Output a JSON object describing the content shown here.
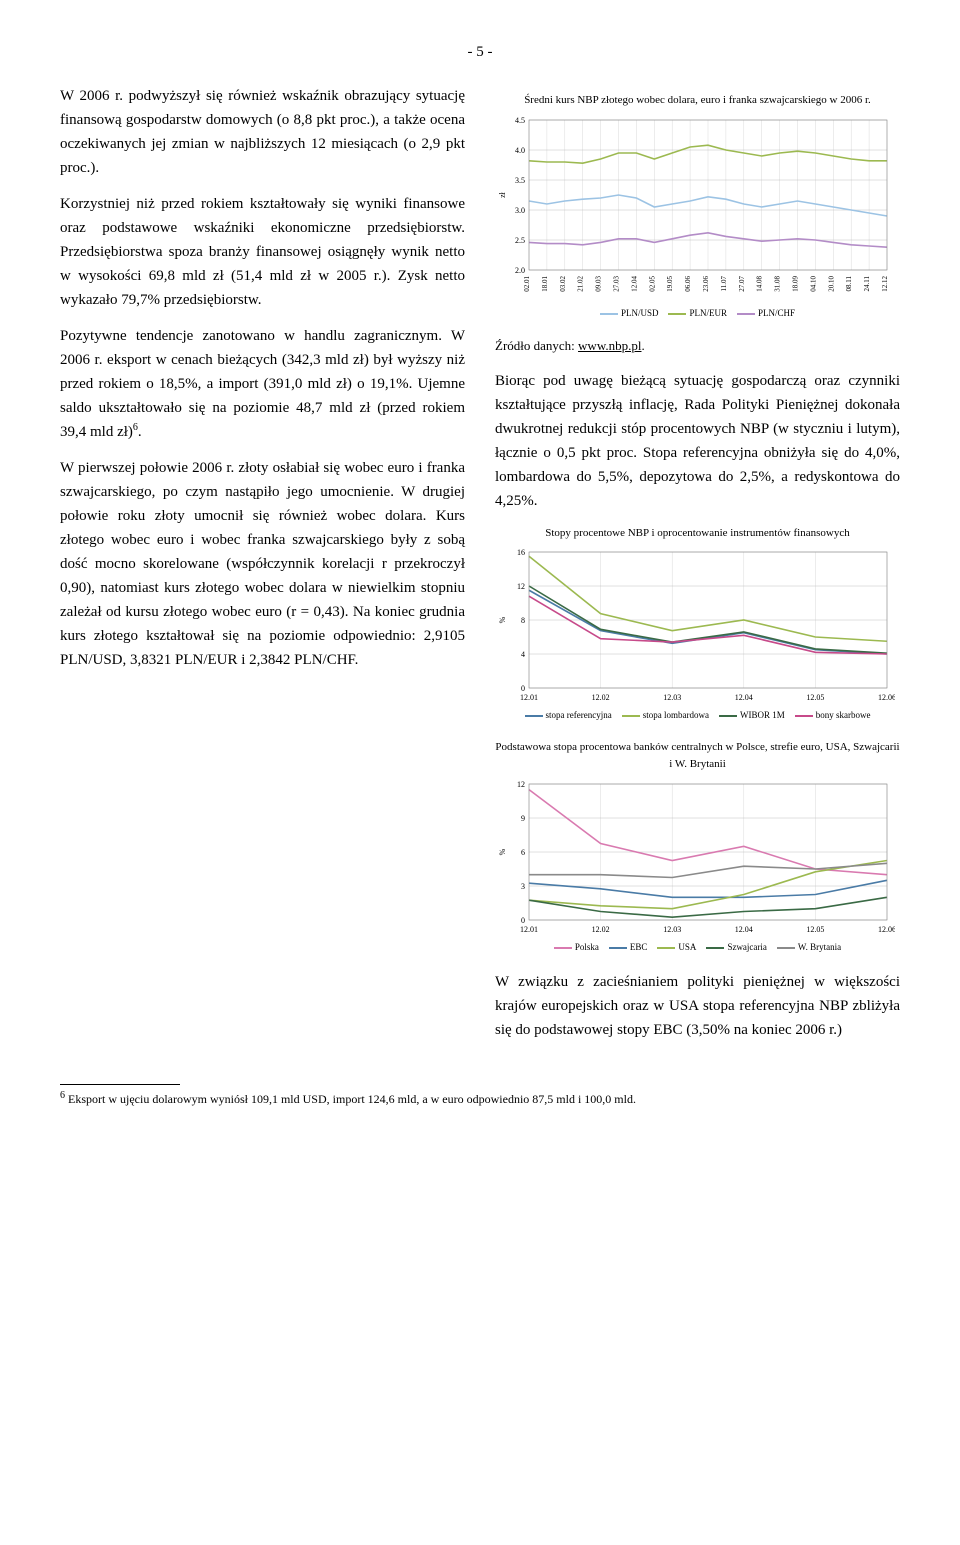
{
  "page_number": "- 5 -",
  "left": {
    "p1": "W 2006 r. podwyższył się również wskaźnik obrazujący sytuację finansową gospodarstw domowych (o 8,8 pkt proc.), a także ocena oczekiwanych jej zmian w najbliższych 12 miesiącach (o 2,9 pkt proc.).",
    "p2": "Korzystniej niż przed rokiem kształtowały się wyniki finansowe oraz podstawowe wskaźniki ekonomiczne przedsiębiorstw. Przedsiębiorstwa spoza branży finansowej osiągnęły wynik netto w wysokości 69,8 mld zł (51,4 mld zł w 2005 r.). Zysk netto wykazało 79,7% przedsiębiorstw.",
    "p3": "Pozytywne tendencje zanotowano w handlu zagranicznym. W 2006 r. eksport w cenach bieżących (342,3 mld zł) był wyższy niż przed rokiem o 18,5%, a import (391,0 mld zł) o 19,1%. Ujemne saldo ukształtowało się na poziomie 48,7 mld zł (przed rokiem 39,4 mld zł)",
    "p3_sup": "6",
    "p3_tail": ".",
    "p4": "W pierwszej połowie 2006 r. złoty osłabiał się wobec euro i franka szwajcarskiego, po czym nastąpiło jego umocnienie. W drugiej połowie roku złoty umocnił się również wobec dolara. Kurs złotego wobec euro i wobec franka szwajcarskiego były z sobą dość mocno skorelowane (współczynnik korelacji r przekroczył 0,90), natomiast kurs złotego wobec dolara w niewielkim stopniu zależał od kursu złotego wobec euro (r = 0,43). Na koniec grudnia kurs złotego kształtował się na poziomie odpowiednio: 2,9105 PLN/USD, 3,8321 PLN/EUR i 2,3842 PLN/CHF."
  },
  "right": {
    "p1": "Biorąc pod uwagę bieżącą sytuację gospodarczą oraz czynniki kształtujące przyszłą inflację, Rada Polityki Pieniężnej dokonała dwukrotnej redukcji stóp procentowych NBP (w styczniu i lutym), łącznie o 0,5 pkt proc. Stopa referencyjna obniżyła się do 4,0%, lombardowa do 5,5%, depozytowa do 2,5%, a redyskontowa do 4,25%.",
    "p2": "W związku z zacieśnianiem polityki pieniężnej w większości krajów europejskich oraz w USA stopa referencyjna NBP zbliżyła się do podstawowej stopy EBC (3,50% na koniec 2006 r.)",
    "source_label": "Źródło danych: ",
    "source_link": "www.nbp.pl",
    "source_tail": "."
  },
  "footnote": {
    "num": "6",
    "text": " Eksport w ujęciu dolarowym wyniósł 109,1 mld USD, import 124,6 mld, a w euro odpowiednio 87,5 mld i 100,0 mld."
  },
  "chart1": {
    "title": "Średni kurs NBP złotego wobec dolara, euro i franka szwajcarskiego w 2006 r.",
    "ylabel": "zł",
    "ylim": [
      2.0,
      4.5
    ],
    "ytick_step": 0.5,
    "x_labels": [
      "02.01",
      "18.01",
      "03.02",
      "21.02",
      "09.03",
      "27.03",
      "12.04",
      "02.05",
      "19.05",
      "06.06",
      "23.06",
      "11.07",
      "27.07",
      "14.08",
      "31.08",
      "18.09",
      "04.10",
      "20.10",
      "08.11",
      "24.11",
      "12.12"
    ],
    "series": [
      {
        "name": "PLN/USD",
        "color": "#9cc3e4",
        "data": [
          3.15,
          3.1,
          3.15,
          3.18,
          3.2,
          3.25,
          3.2,
          3.05,
          3.1,
          3.15,
          3.22,
          3.18,
          3.1,
          3.05,
          3.1,
          3.15,
          3.1,
          3.05,
          3.0,
          2.95,
          2.9
        ]
      },
      {
        "name": "PLN/EUR",
        "color": "#9cb950",
        "data": [
          3.82,
          3.8,
          3.8,
          3.78,
          3.85,
          3.95,
          3.95,
          3.85,
          3.95,
          4.05,
          4.08,
          4.0,
          3.95,
          3.9,
          3.95,
          3.98,
          3.95,
          3.9,
          3.85,
          3.82,
          3.82
        ]
      },
      {
        "name": "PLN/CHF",
        "color": "#b38cc7",
        "data": [
          2.46,
          2.44,
          2.44,
          2.42,
          2.46,
          2.52,
          2.52,
          2.46,
          2.52,
          2.58,
          2.62,
          2.56,
          2.52,
          2.48,
          2.5,
          2.52,
          2.5,
          2.46,
          2.42,
          2.4,
          2.38
        ]
      }
    ],
    "grid_color": "#c0c0c0",
    "bg": "#ffffff",
    "axis_fontsize": 8
  },
  "chart2": {
    "title": "Stopy procentowe NBP i oprocentowanie instrumentów finansowych",
    "ylabel": "%",
    "ylim": [
      0,
      16
    ],
    "ytick_step": 4,
    "x_labels": [
      "12.01",
      "12.02",
      "12.03",
      "12.04",
      "12.05",
      "12.06"
    ],
    "series": [
      {
        "name": "stopa referencyjna",
        "color": "#4a7ba6",
        "data": [
          11.5,
          6.75,
          5.25,
          6.5,
          4.5,
          4.0
        ]
      },
      {
        "name": "stopa lombardowa",
        "color": "#9cb950",
        "data": [
          15.5,
          8.75,
          6.75,
          8.0,
          6.0,
          5.5
        ]
      },
      {
        "name": "WIBOR 1M",
        "color": "#3a6a45",
        "data": [
          12.0,
          6.9,
          5.4,
          6.6,
          4.6,
          4.1
        ]
      },
      {
        "name": "bony skarbowe",
        "color": "#c74a8a",
        "data": [
          10.8,
          5.8,
          5.4,
          6.2,
          4.2,
          4.0
        ]
      }
    ],
    "grid_color": "#c0c0c0",
    "bg": "#ffffff",
    "axis_fontsize": 8
  },
  "chart3": {
    "title": "Podstawowa stopa procentowa banków centralnych w Polsce, strefie euro, USA, Szwajcarii i W. Brytanii",
    "ylabel": "%",
    "ylim": [
      0,
      12
    ],
    "ytick_step": 3,
    "x_labels": [
      "12.01",
      "12.02",
      "12.03",
      "12.04",
      "12.05",
      "12.06"
    ],
    "series": [
      {
        "name": "Polska",
        "color": "#d97ab0",
        "data": [
          11.5,
          6.75,
          5.25,
          6.5,
          4.5,
          4.0
        ]
      },
      {
        "name": "EBC",
        "color": "#4a7ba6",
        "data": [
          3.25,
          2.75,
          2.0,
          2.0,
          2.25,
          3.5
        ]
      },
      {
        "name": "USA",
        "color": "#9cb950",
        "data": [
          1.75,
          1.25,
          1.0,
          2.25,
          4.25,
          5.25
        ]
      },
      {
        "name": "Szwajcaria",
        "color": "#3a6a45",
        "data": [
          1.75,
          0.75,
          0.25,
          0.75,
          1.0,
          2.0
        ]
      },
      {
        "name": "W. Brytania",
        "color": "#8a8a8a",
        "data": [
          4.0,
          4.0,
          3.75,
          4.75,
          4.5,
          5.0
        ]
      }
    ],
    "grid_color": "#c0c0c0",
    "bg": "#ffffff",
    "axis_fontsize": 8
  }
}
